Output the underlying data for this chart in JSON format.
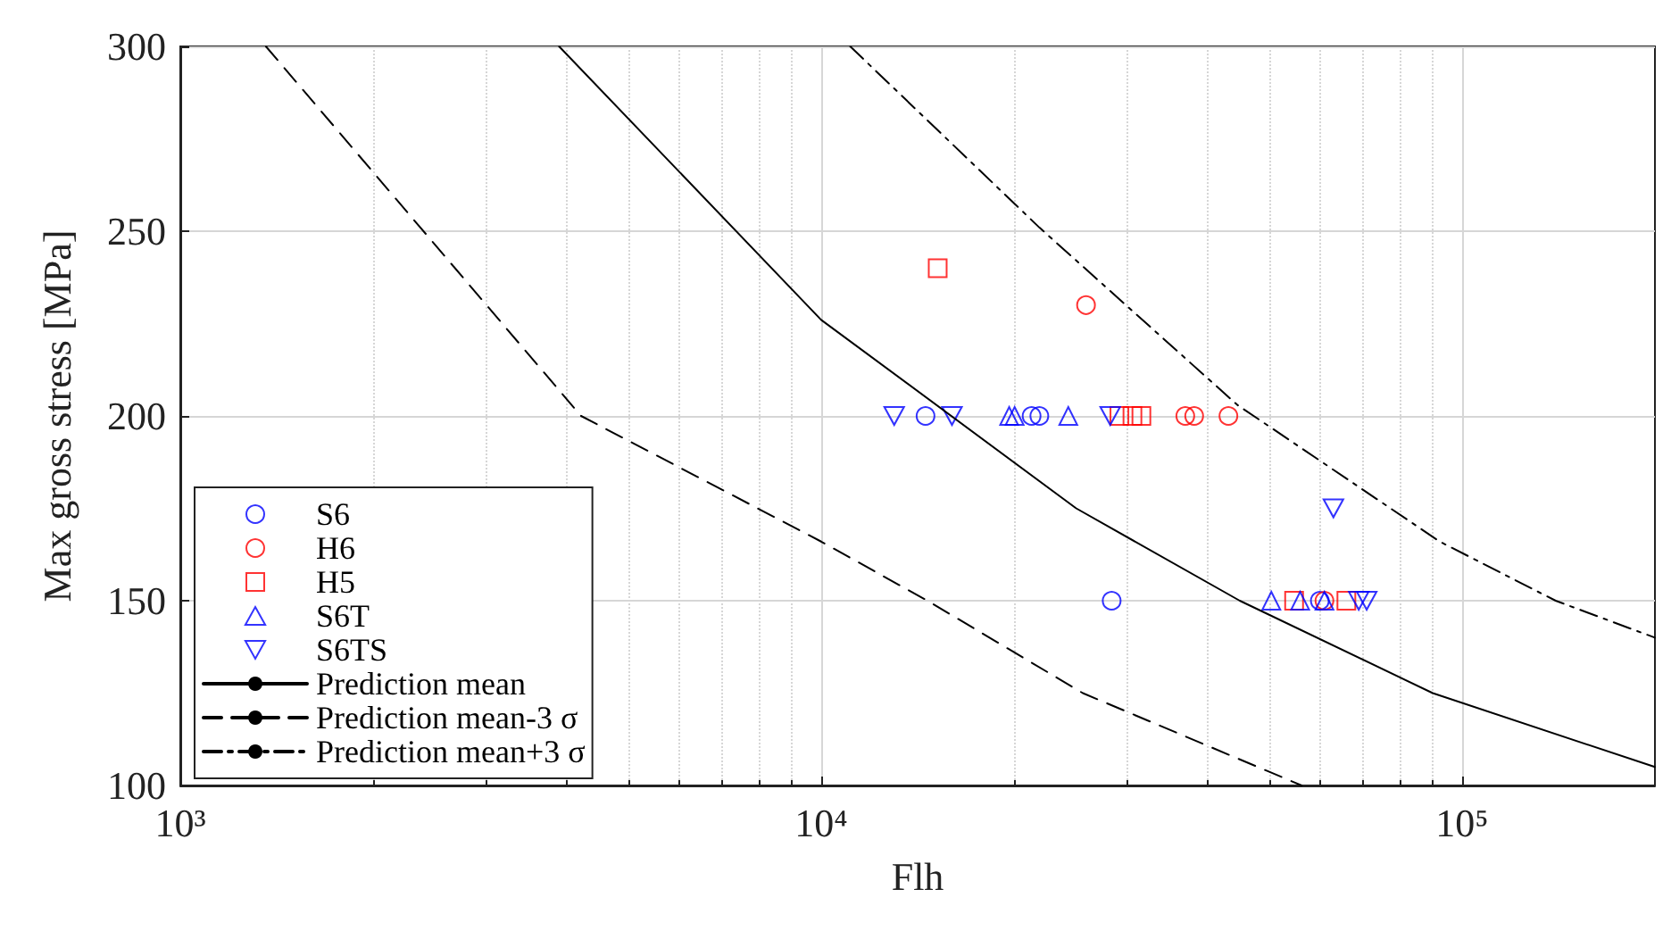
{
  "chart_data": {
    "type": "scatter",
    "xlabel": "Flh",
    "ylabel": "Max gross stress [MPa]",
    "log": "x",
    "xlim": [
      1000,
      200000
    ],
    "xticks": [
      {
        "value": 1000,
        "label": "10³"
      },
      {
        "value": 10000,
        "label": "10⁴"
      },
      {
        "value": 100000,
        "label": "10⁵"
      }
    ],
    "ylim": [
      100,
      300
    ],
    "yticks": [
      100,
      150,
      200,
      250,
      300
    ],
    "grid": true,
    "legend": "bottom left",
    "series": [
      {
        "name": "S6",
        "color": "#0000ff",
        "type": "scatter",
        "marker": "circle",
        "x": [
          14550,
          21300,
          21900,
          28400,
          60000
        ],
        "values": [
          200,
          200,
          200,
          150,
          150
        ]
      },
      {
        "name": "H6",
        "color": "#ff0000",
        "type": "scatter",
        "marker": "circle",
        "x": [
          25900,
          37000,
          38200,
          43200,
          61000
        ],
        "values": [
          230,
          200,
          200,
          200,
          150
        ]
      },
      {
        "name": "H5",
        "color": "#ff0000",
        "type": "scatter",
        "marker": "square",
        "x": [
          15200,
          29200,
          30600,
          31600,
          54700,
          66000
        ],
        "values": [
          240,
          200,
          200,
          200,
          150,
          150
        ]
      },
      {
        "name": "S6T",
        "color": "#0000ff",
        "type": "scatter",
        "marker": "triangle",
        "x": [
          19650,
          20040,
          24300,
          50400,
          55900,
          61000
        ],
        "values": [
          200,
          200,
          200,
          150,
          150,
          150
        ]
      },
      {
        "name": "S6TS",
        "color": "#0000ff",
        "type": "scatter",
        "marker": "triangle-down",
        "x": [
          13000,
          16000,
          28250,
          63000,
          69000,
          71000
        ],
        "values": [
          200,
          200,
          200,
          175,
          150,
          150
        ]
      },
      {
        "name": "Prediction mean",
        "color": "#000000",
        "type": "line",
        "line_style": "solid",
        "x": [
          3900,
          10000,
          25000,
          45000,
          90000,
          200000
        ],
        "values": [
          300,
          226,
          175,
          150,
          125,
          105
        ]
      },
      {
        "name": "Prediction mean-3 σ",
        "color": "#000000",
        "type": "line",
        "line_style": "dashed",
        "x": [
          1360,
          4220,
          10000,
          14650,
          25600,
          56200
        ],
        "values": [
          300,
          200,
          166,
          150,
          125,
          100
        ]
      },
      {
        "name": "Prediction mean+3 σ",
        "color": "#000000",
        "type": "line",
        "line_style": "dashdot",
        "x": [
          11100,
          21900,
          44600,
          92300,
          140000,
          200000
        ],
        "values": [
          300,
          251,
          203,
          166,
          150,
          140
        ]
      }
    ]
  }
}
